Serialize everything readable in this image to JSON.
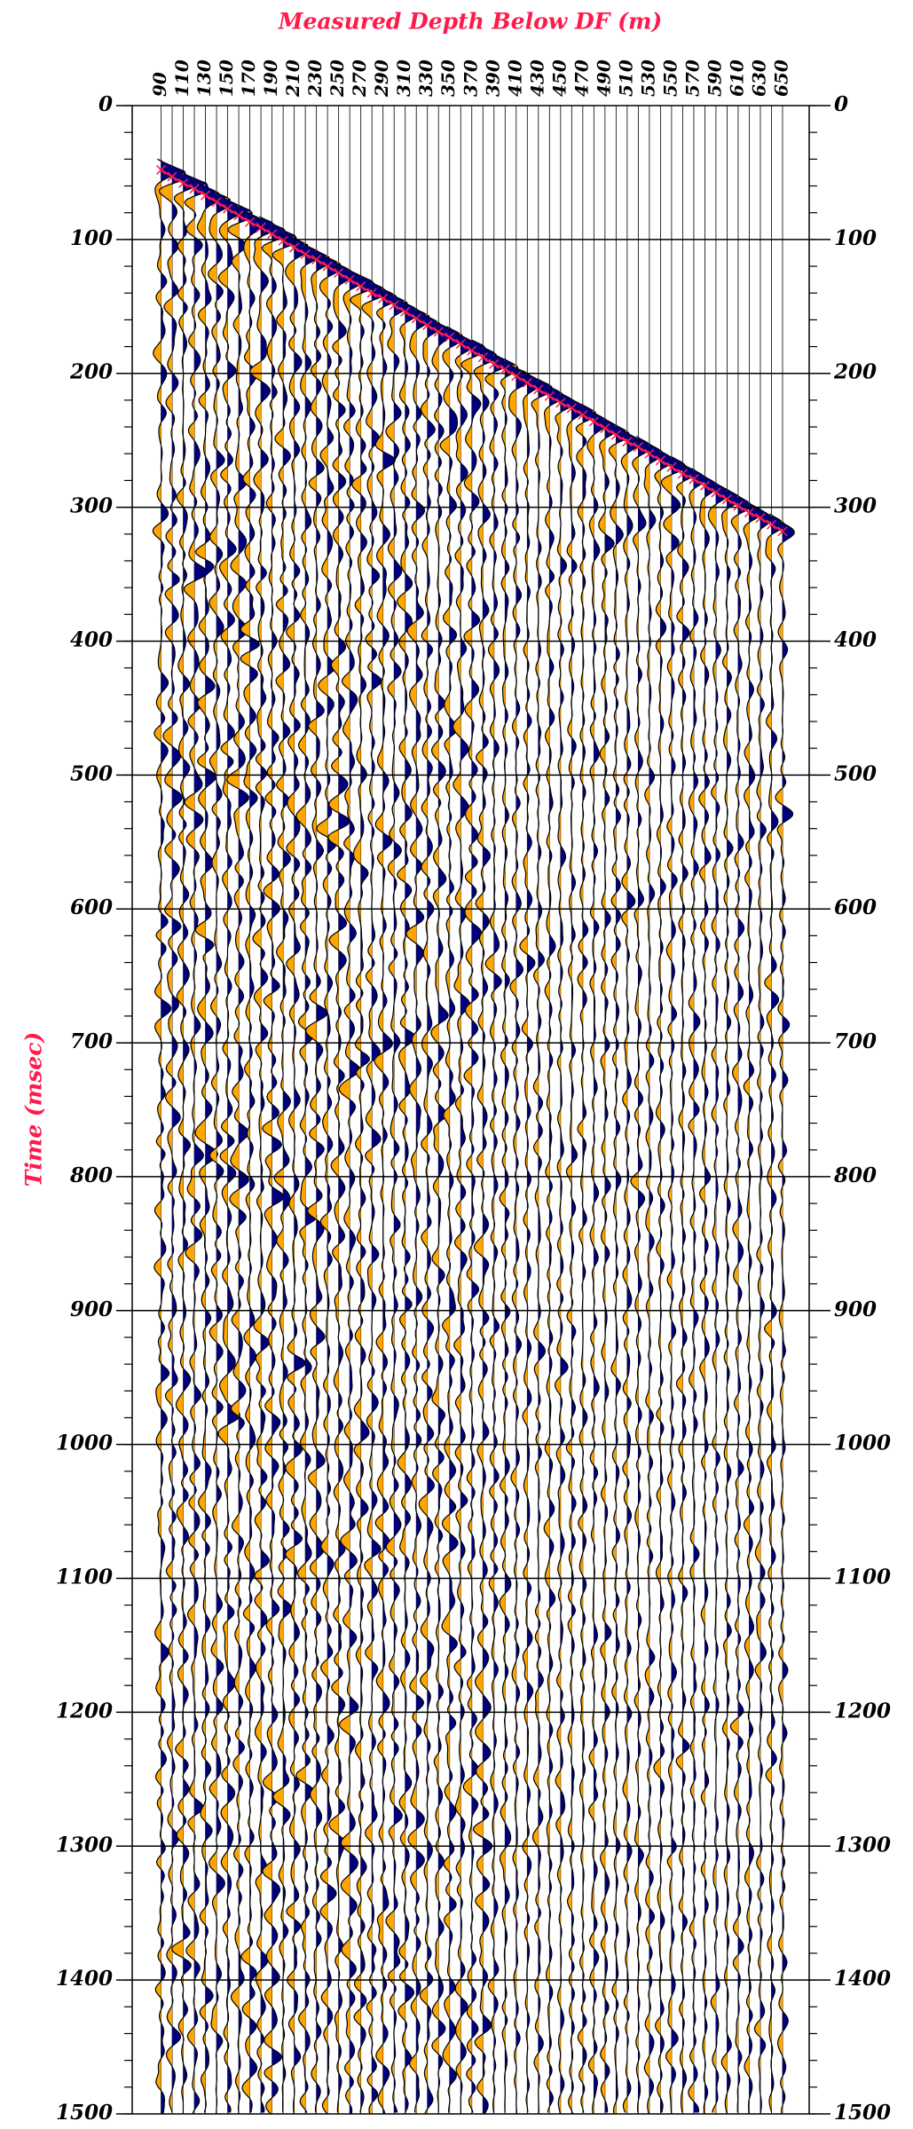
{
  "chart_data": {
    "type": "wiggle",
    "title": "Measured Depth Below DF (m)",
    "ylabel": "Time (msec)",
    "x": [
      90,
      100,
      110,
      120,
      130,
      140,
      150,
      160,
      170,
      180,
      190,
      200,
      210,
      220,
      230,
      240,
      250,
      260,
      270,
      280,
      290,
      300,
      310,
      320,
      330,
      340,
      350,
      360,
      370,
      380,
      390,
      400,
      410,
      420,
      430,
      440,
      450,
      460,
      470,
      480,
      490,
      500,
      510,
      520,
      530,
      540,
      550,
      560,
      570,
      580,
      590,
      600,
      610,
      620,
      630,
      640,
      650
    ],
    "values": [
      48,
      53,
      58,
      62,
      67,
      72,
      77,
      82,
      87,
      91,
      96,
      101,
      106,
      111,
      115,
      120,
      125,
      130,
      135,
      140,
      144,
      149,
      154,
      159,
      164,
      169,
      173,
      178,
      183,
      188,
      193,
      197,
      202,
      207,
      212,
      217,
      222,
      226,
      231,
      236,
      241,
      246,
      251,
      255,
      260,
      265,
      270,
      275,
      279,
      284,
      289,
      294,
      299,
      304,
      308,
      313,
      318
    ],
    "color": "#ff1a4b",
    "positive_color": "#00007f",
    "negative_color": "#ffa500",
    "xlim": [
      64,
      674
    ],
    "xticks": [
      90,
      110,
      130,
      150,
      170,
      190,
      210,
      230,
      250,
      270,
      290,
      310,
      330,
      350,
      370,
      390,
      410,
      430,
      450,
      470,
      490,
      510,
      530,
      550,
      570,
      590,
      610,
      630,
      650
    ],
    "ylim": [
      0,
      1500
    ],
    "yticks": [
      0,
      100,
      200,
      300,
      400,
      500,
      600,
      700,
      800,
      900,
      1000,
      1100,
      1200,
      1300,
      1400,
      1500
    ],
    "yminor_step": 20,
    "y_inverted": true,
    "grid": true
  }
}
